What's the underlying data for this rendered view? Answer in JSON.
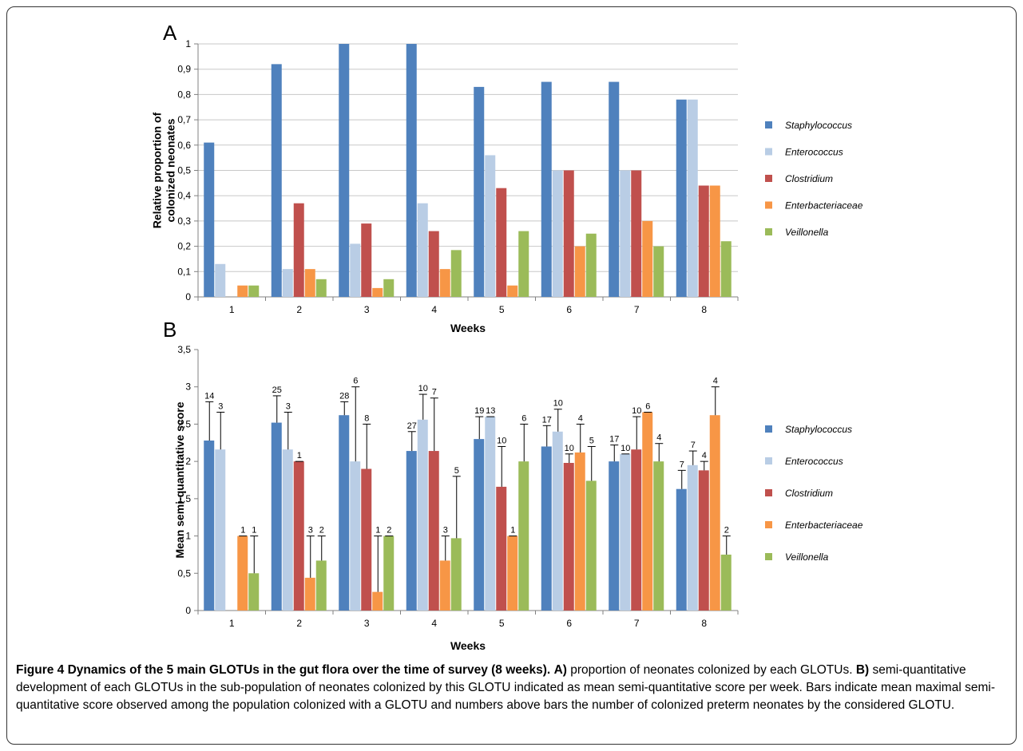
{
  "chart_data": [
    {
      "type": "bar",
      "panel": "A",
      "categories": [
        "1",
        "2",
        "3",
        "4",
        "5",
        "6",
        "7",
        "8"
      ],
      "xlabel": "Weeks",
      "ylabel": "Relative proportion of colonized neonates",
      "ylabel_lines": [
        "Relative proportion of",
        "colonized neonates"
      ],
      "ylim": [
        0,
        1
      ],
      "yticks": [
        "0",
        "0,1",
        "0,2",
        "0,3",
        "0,4",
        "0,5",
        "0,6",
        "0,7",
        "0,8",
        "0,9",
        "1"
      ],
      "grid": true,
      "legend": "right",
      "series": [
        {
          "name": "Staphylococcus",
          "color": "#4f81bd",
          "values": [
            0.61,
            0.92,
            1.0,
            1.0,
            0.83,
            0.85,
            0.85,
            0.78
          ]
        },
        {
          "name": "Enterococcus",
          "color": "#b9cde5",
          "values": [
            0.13,
            0.11,
            0.21,
            0.37,
            0.56,
            0.5,
            0.5,
            0.78
          ]
        },
        {
          "name": "Clostridium",
          "color": "#c0504d",
          "values": [
            0.0,
            0.37,
            0.29,
            0.26,
            0.43,
            0.5,
            0.5,
            0.44
          ]
        },
        {
          "name": "Enterbacteriaceae",
          "color": "#f79646",
          "values": [
            0.045,
            0.11,
            0.035,
            0.11,
            0.045,
            0.2,
            0.3,
            0.44
          ]
        },
        {
          "name": "Veillonella",
          "color": "#9bbb59",
          "values": [
            0.045,
            0.07,
            0.07,
            0.185,
            0.26,
            0.25,
            0.2,
            0.22
          ]
        }
      ]
    },
    {
      "type": "bar",
      "panel": "B",
      "categories": [
        "1",
        "2",
        "3",
        "4",
        "5",
        "6",
        "7",
        "8"
      ],
      "xlabel": "Weeks",
      "ylabel": "Mean semi-quantitative score",
      "ylim": [
        0,
        3.5
      ],
      "yticks": [
        "0",
        "0,5",
        "1",
        "1,5",
        "2",
        "2,5",
        "3",
        "3,5"
      ],
      "grid": false,
      "legend": "right",
      "series": [
        {
          "name": "Staphylococcus",
          "color": "#4f81bd",
          "values": [
            2.28,
            2.52,
            2.62,
            2.14,
            2.3,
            2.2,
            2.0,
            1.63
          ],
          "max": [
            2.8,
            2.88,
            2.8,
            2.4,
            2.6,
            2.48,
            2.22,
            1.88
          ],
          "n": [
            "14",
            "25",
            "28",
            "27",
            "19",
            "17",
            "17",
            "7"
          ]
        },
        {
          "name": "Enterococcus",
          "color": "#b9cde5",
          "values": [
            2.16,
            2.16,
            2.0,
            2.56,
            2.6,
            2.4,
            2.1,
            1.95
          ],
          "max": [
            2.66,
            2.66,
            3.0,
            2.9,
            2.6,
            2.7,
            2.1,
            2.14
          ],
          "n": [
            "3",
            "3",
            "6",
            "10",
            "13",
            "10",
            "10",
            "7"
          ]
        },
        {
          "name": "Clostridium",
          "color": "#c0504d",
          "values": [
            0.0,
            2.0,
            1.9,
            2.14,
            1.66,
            1.98,
            2.16,
            1.88
          ],
          "max": [
            0.0,
            2.0,
            2.5,
            2.85,
            2.2,
            2.1,
            2.6,
            2.0
          ],
          "n": [
            "",
            "1",
            "8",
            "7",
            "10",
            "10",
            "10",
            "4"
          ]
        },
        {
          "name": "Enterbacteriaceae",
          "color": "#f79646",
          "values": [
            1.0,
            0.44,
            0.25,
            0.67,
            1.0,
            2.12,
            2.66,
            2.62
          ],
          "max": [
            1.0,
            1.0,
            1.0,
            1.0,
            1.0,
            2.5,
            2.66,
            3.0
          ],
          "n": [
            "1",
            "3",
            "1",
            "3",
            "1",
            "4",
            "6",
            "4"
          ]
        },
        {
          "name": "Veillonella",
          "color": "#9bbb59",
          "values": [
            0.5,
            0.67,
            1.0,
            0.97,
            2.0,
            1.74,
            2.0,
            0.75
          ],
          "max": [
            1.0,
            1.0,
            1.0,
            1.8,
            2.5,
            2.2,
            2.24,
            1.0
          ],
          "n": [
            "1",
            "2",
            "2",
            "5",
            "6",
            "5",
            "4",
            "2"
          ]
        }
      ]
    }
  ],
  "caption": {
    "figure_label": "Figure 4 Dynamics of the 5 main GLOTUs in the gut flora over the time of survey (8 weeks).",
    "part_a_label": "A)",
    "part_a_text": " proportion of neonates colonized by each",
    "line2_start": "GLOTUs. ",
    "part_b_label": "B)",
    "part_b_text": " semi-quantitative development of each GLOTUs in the sub-population of neonates colonized by this GLOTU indicated as mean semi-quantitative score per week. Bars indicate mean maximal semi-quantitative score observed among the population colonized with a GLOTU and numbers above bars the number of colonized preterm neonates by the considered GLOTU."
  }
}
